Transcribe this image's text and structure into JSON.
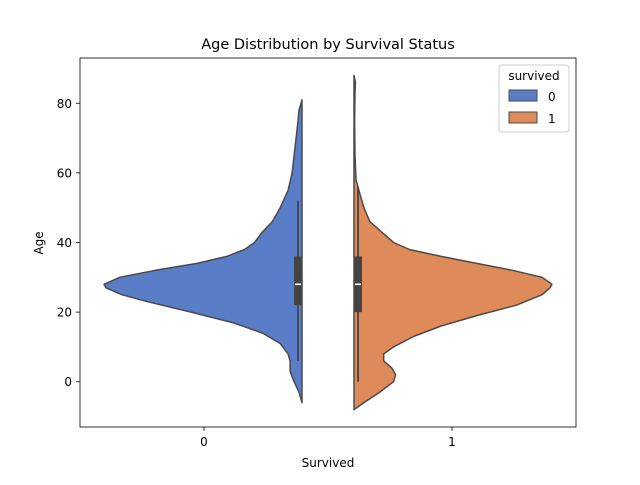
{
  "chart_data": {
    "type": "violin",
    "title": "Age Distribution by Survival Status",
    "xlabel": "Survived",
    "ylabel": "Age",
    "categories": [
      "0",
      "1"
    ],
    "ylim": [
      -13,
      93
    ],
    "yticks": [
      0,
      20,
      40,
      60,
      80
    ],
    "grid": false,
    "legend": {
      "title": "survived",
      "placement": "top-right",
      "entries": [
        {
          "label": "0",
          "color": "#5a7dc7"
        },
        {
          "label": "1",
          "color": "#de8a59"
        }
      ]
    },
    "series": [
      {
        "name": "0",
        "side": "left",
        "color": "#5a7dc7",
        "box": {
          "whisker_low": 6,
          "q1": 22,
          "median": 28,
          "q3": 36,
          "whisker_high": 52
        },
        "density": [
          [
            -6,
            0
          ],
          [
            -3,
            0.015
          ],
          [
            0,
            0.04
          ],
          [
            3,
            0.06
          ],
          [
            6,
            0.06
          ],
          [
            8,
            0.07
          ],
          [
            11,
            0.11
          ],
          [
            14,
            0.2
          ],
          [
            17,
            0.35
          ],
          [
            20,
            0.56
          ],
          [
            23,
            0.78
          ],
          [
            25,
            0.91
          ],
          [
            27,
            0.99
          ],
          [
            28,
            1.0
          ],
          [
            30,
            0.92
          ],
          [
            32,
            0.74
          ],
          [
            34,
            0.53
          ],
          [
            36,
            0.38
          ],
          [
            38,
            0.29
          ],
          [
            40,
            0.24
          ],
          [
            43,
            0.2
          ],
          [
            46,
            0.15
          ],
          [
            50,
            0.11
          ],
          [
            55,
            0.07
          ],
          [
            60,
            0.05
          ],
          [
            65,
            0.04
          ],
          [
            70,
            0.03
          ],
          [
            75,
            0.02
          ],
          [
            78,
            0.015
          ],
          [
            81,
            0
          ]
        ]
      },
      {
        "name": "1",
        "side": "right",
        "color": "#de8a59",
        "box": {
          "whisker_low": 0,
          "q1": 20,
          "median": 28,
          "q3": 36,
          "whisker_high": 56
        },
        "density": [
          [
            -8,
            0
          ],
          [
            -6,
            0.05
          ],
          [
            -3,
            0.13
          ],
          [
            0,
            0.2
          ],
          [
            2,
            0.21
          ],
          [
            4,
            0.19
          ],
          [
            6,
            0.15
          ],
          [
            8,
            0.15
          ],
          [
            10,
            0.2
          ],
          [
            13,
            0.3
          ],
          [
            16,
            0.44
          ],
          [
            19,
            0.62
          ],
          [
            22,
            0.82
          ],
          [
            25,
            0.95
          ],
          [
            27,
            0.99
          ],
          [
            28,
            1.0
          ],
          [
            30,
            0.95
          ],
          [
            32,
            0.8
          ],
          [
            34,
            0.62
          ],
          [
            36,
            0.44
          ],
          [
            38,
            0.28
          ],
          [
            40,
            0.2
          ],
          [
            43,
            0.14
          ],
          [
            46,
            0.08
          ],
          [
            50,
            0.05
          ],
          [
            54,
            0.03
          ],
          [
            58,
            0.01
          ],
          [
            65,
            0.005
          ],
          [
            75,
            0.003
          ],
          [
            83,
            0.005
          ],
          [
            86,
            0.007
          ],
          [
            88,
            0
          ]
        ]
      }
    ]
  }
}
